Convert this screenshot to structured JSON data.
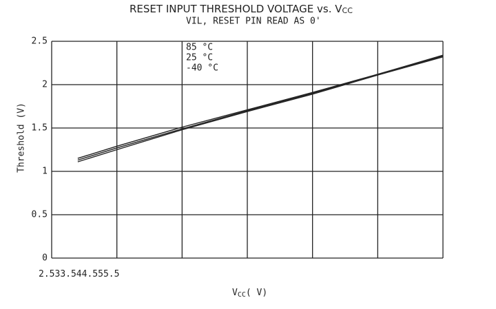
{
  "chart_data": {
    "type": "line",
    "title": "RESET INPUT THRESHOLD VOLTAGE vs. V",
    "title_subscript": "CC",
    "subtitle": "VIL, RESET PIN READ AS 0'",
    "x_label": "V",
    "x_label_subscript": "CC",
    "x_label_unit": "( V)",
    "y_label": "Threshold (V)",
    "x": [
      2.7,
      3,
      3.5,
      4,
      4.5,
      5,
      5.5
    ],
    "series": [
      {
        "name": "85 °C",
        "color": "#222222",
        "values": [
          1.11,
          1.25,
          1.48,
          1.69,
          1.89,
          2.11,
          2.32
        ]
      },
      {
        "name": "25 °C",
        "color": "#222222",
        "values": [
          1.13,
          1.27,
          1.49,
          1.7,
          1.9,
          2.12,
          2.33
        ]
      },
      {
        "name": "-40 °C",
        "color": "#222222",
        "values": [
          1.15,
          1.29,
          1.51,
          1.71,
          1.91,
          2.12,
          2.34
        ]
      }
    ],
    "xlim": [
      2.5,
      5.5
    ],
    "xticks": [
      2.5,
      3,
      3.5,
      4,
      4.5,
      5,
      5.5
    ],
    "ylim": [
      0,
      2.5
    ],
    "yticks": [
      0,
      0.5,
      1,
      1.5,
      2,
      2.5
    ],
    "grid": true,
    "legend": "top-left"
  }
}
